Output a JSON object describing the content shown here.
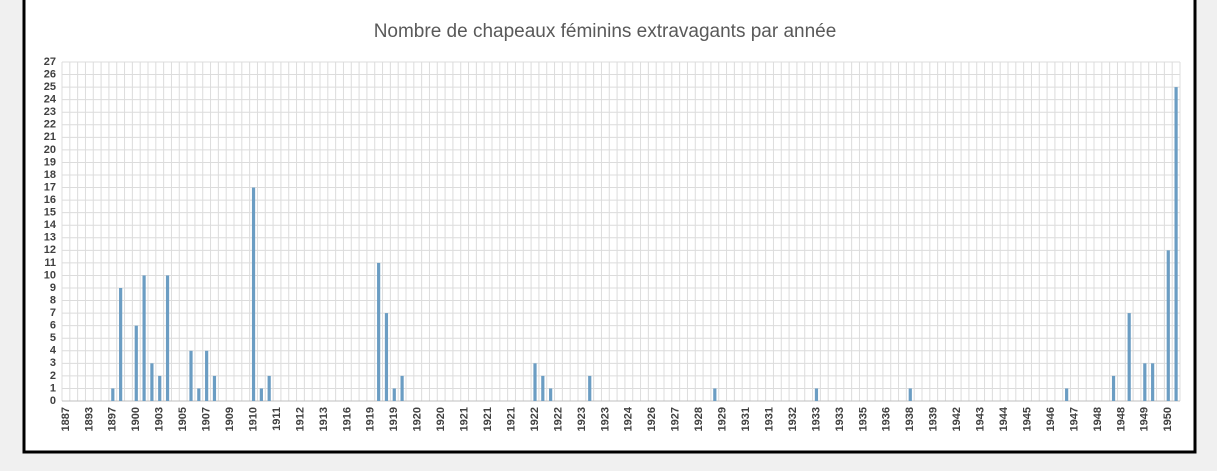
{
  "chart_data": {
    "type": "bar",
    "title": "Nombre de chapeaux féminins extravagants par année",
    "categories": [
      "1887",
      null,
      null,
      "1893",
      null,
      null,
      "1897",
      null,
      null,
      "1900",
      null,
      null,
      "1903",
      null,
      null,
      "1905",
      null,
      null,
      "1907",
      null,
      null,
      "1909",
      null,
      null,
      "1910",
      null,
      null,
      "1911",
      null,
      null,
      "1912",
      null,
      null,
      "1913",
      null,
      null,
      "1916",
      null,
      null,
      "1919",
      null,
      null,
      "1919",
      null,
      null,
      "1920",
      null,
      null,
      "1920",
      null,
      null,
      "1921",
      null,
      null,
      "1921",
      null,
      null,
      "1921",
      null,
      null,
      "1922",
      null,
      null,
      "1922",
      null,
      null,
      "1923",
      null,
      null,
      "1923",
      null,
      null,
      "1924",
      null,
      null,
      "1926",
      null,
      null,
      "1927",
      null,
      null,
      "1928",
      null,
      null,
      "1929",
      null,
      null,
      "1931",
      null,
      null,
      "1931",
      null,
      null,
      "1932",
      null,
      null,
      "1933",
      null,
      null,
      "1933",
      null,
      null,
      "1935",
      null,
      null,
      "1936",
      null,
      null,
      "1938",
      null,
      null,
      "1939",
      null,
      null,
      "1942",
      null,
      null,
      "1943",
      null,
      null,
      "1944",
      null,
      null,
      "1945",
      null,
      null,
      "1946",
      null,
      null,
      "1947",
      null,
      null,
      "1948",
      null,
      null,
      "1948",
      null,
      null,
      "1949",
      null,
      null,
      "1950",
      null
    ],
    "values": [
      0,
      0,
      0,
      0,
      0,
      0,
      1,
      9,
      0,
      6,
      10,
      3,
      2,
      10,
      0,
      0,
      4,
      1,
      4,
      2,
      0,
      0,
      0,
      0,
      17,
      1,
      2,
      0,
      0,
      0,
      0,
      0,
      0,
      0,
      0,
      0,
      0,
      0,
      0,
      0,
      11,
      7,
      1,
      2,
      0,
      0,
      0,
      0,
      0,
      0,
      0,
      0,
      0,
      0,
      0,
      0,
      0,
      0,
      0,
      0,
      3,
      2,
      1,
      0,
      0,
      0,
      0,
      2,
      0,
      0,
      0,
      0,
      0,
      0,
      0,
      0,
      0,
      0,
      0,
      0,
      0,
      0,
      0,
      1,
      0,
      0,
      0,
      0,
      0,
      0,
      0,
      0,
      0,
      0,
      0,
      0,
      1,
      0,
      0,
      0,
      0,
      0,
      0,
      0,
      0,
      0,
      0,
      0,
      1,
      0,
      0,
      0,
      0,
      0,
      0,
      0,
      0,
      0,
      0,
      0,
      0,
      0,
      0,
      0,
      0,
      0,
      0,
      0,
      1,
      0,
      0,
      0,
      0,
      0,
      2,
      0,
      7,
      0,
      3,
      3,
      0,
      12,
      25
    ],
    "color": "#6b9dc3",
    "ylim": [
      0,
      27
    ],
    "yticks": [
      0,
      1,
      2,
      3,
      4,
      5,
      6,
      7,
      8,
      9,
      10,
      11,
      12,
      13,
      14,
      15,
      16,
      17,
      18,
      19,
      20,
      21,
      22,
      23,
      24,
      25,
      26,
      27
    ],
    "grid": true
  }
}
